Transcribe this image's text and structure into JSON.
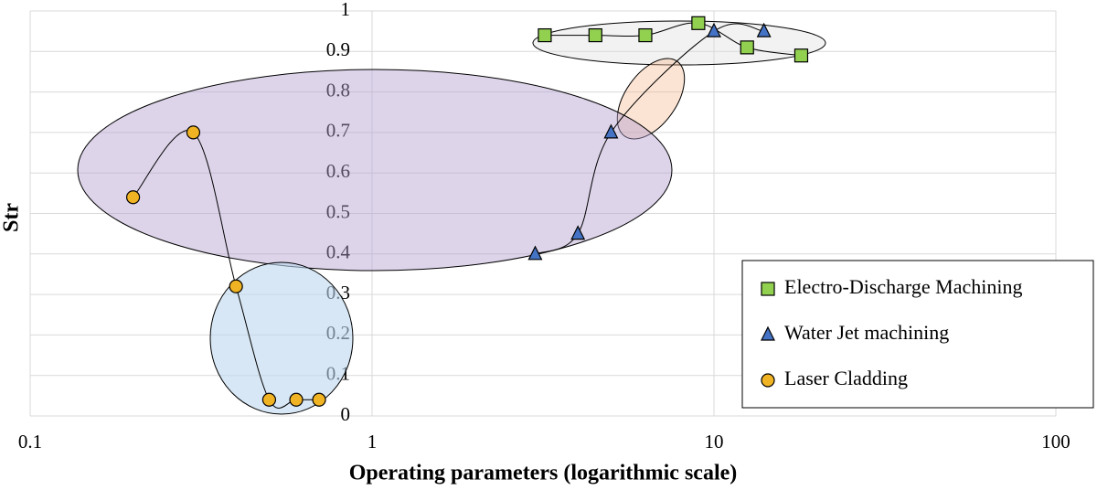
{
  "chart_data": {
    "type": "scatter",
    "x_label": "Operating parameters (logarithmic scale)",
    "y_label": "Str",
    "xlim": [
      0.1,
      100
    ],
    "xticks": [
      0.1,
      1,
      10,
      100
    ],
    "xscale": "log",
    "ylim": [
      0,
      1
    ],
    "yticks": [
      0,
      0.1,
      0.2,
      0.3,
      0.4,
      0.5,
      0.6,
      0.7,
      0.8,
      0.9,
      1
    ],
    "grid": true,
    "legend": "lower right",
    "smooth": true,
    "series": [
      {
        "name": "Electro-Discharge Machining",
        "color": "#92d050",
        "marker": "square",
        "x": [
          3.2,
          4.5,
          6.3,
          9.0,
          12.5,
          18
        ],
        "values": [
          0.94,
          0.94,
          0.94,
          0.97,
          0.91,
          0.89
        ]
      },
      {
        "name": "Water Jet machining",
        "color": "#4472c4",
        "marker": "triangle",
        "x": [
          3.0,
          4.0,
          5.0,
          10,
          14
        ],
        "values": [
          0.4,
          0.45,
          0.7,
          0.95,
          0.95
        ]
      },
      {
        "name": "Laser Cladding",
        "color": "#f0b323",
        "marker": "circle",
        "x": [
          0.2,
          0.3,
          0.4,
          0.5,
          0.6,
          0.7
        ],
        "values": [
          0.54,
          0.7,
          0.32,
          0.04,
          0.04,
          0.04
        ]
      }
    ]
  }
}
